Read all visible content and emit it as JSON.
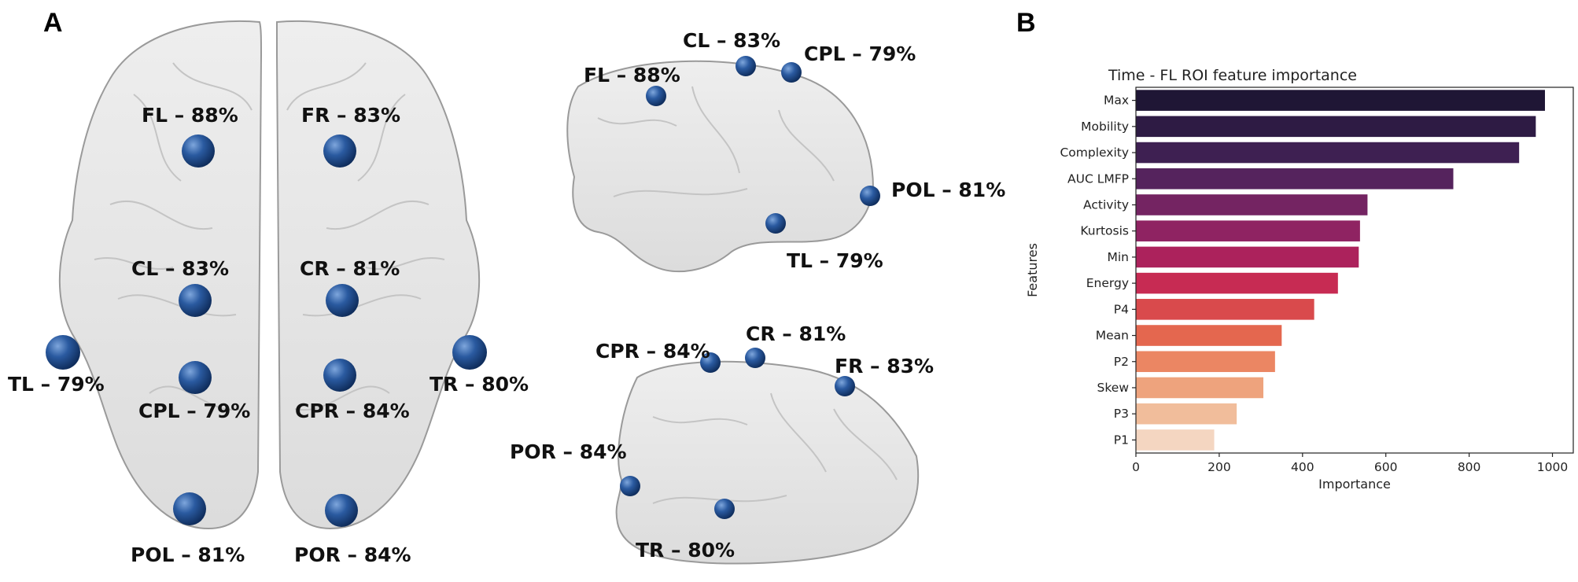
{
  "panels": {
    "a_letter": "A",
    "b_letter": "B"
  },
  "brain_colors": {
    "node": "#1f4e8c",
    "node_highlight": "#6f9ad6",
    "tissue": "#e4e4e4",
    "outline": "#9a9a9a"
  },
  "top_view": {
    "labels": {
      "fl": "FL – 88%",
      "fr": "FR – 83%",
      "cl": "CL – 83%",
      "cr": "CR – 81%",
      "tl": "TL – 79%",
      "tr": "TR – 80%",
      "cpl": "CPL – 79%",
      "cpr": "CPR – 84%",
      "pol": "POL – 81%",
      "por": "POR – 84%"
    }
  },
  "left_lateral_view": {
    "labels": {
      "cl": "CL – 83%",
      "cpl": "CPL – 79%",
      "fl": "FL – 88%",
      "pol": "POL – 81%",
      "tl": "TL – 79%"
    }
  },
  "right_lateral_view": {
    "labels": {
      "cr": "CR – 81%",
      "cpr": "CPR – 84%",
      "fr": "FR – 83%",
      "por": "POR – 84%",
      "tr": "TR – 80%"
    }
  },
  "chart_data": {
    "type": "bar",
    "orientation": "horizontal",
    "title": "Time - FL ROI feature importance",
    "xlabel": "Importance",
    "ylabel": "Features",
    "categories": [
      "Max",
      "Mobility",
      "Complexity",
      "AUC LMFP",
      "Activity",
      "Kurtosis",
      "Min",
      "Energy",
      "P4",
      "Mean",
      "P2",
      "Skew",
      "P3",
      "P1"
    ],
    "values": [
      982,
      960,
      920,
      762,
      556,
      538,
      535,
      485,
      428,
      350,
      334,
      306,
      242,
      188
    ],
    "colors": [
      "#1f1635",
      "#2e1b44",
      "#3e2052",
      "#55235d",
      "#742462",
      "#8f2362",
      "#ac225c",
      "#c72b53",
      "#d94a4c",
      "#e4674f",
      "#eb8663",
      "#eea37d",
      "#f1bd9b",
      "#f4d6c1"
    ],
    "xlim": [
      0,
      1050
    ],
    "xticks": [
      0,
      200,
      400,
      600,
      800,
      1000
    ],
    "grid": false,
    "legend": "none"
  }
}
